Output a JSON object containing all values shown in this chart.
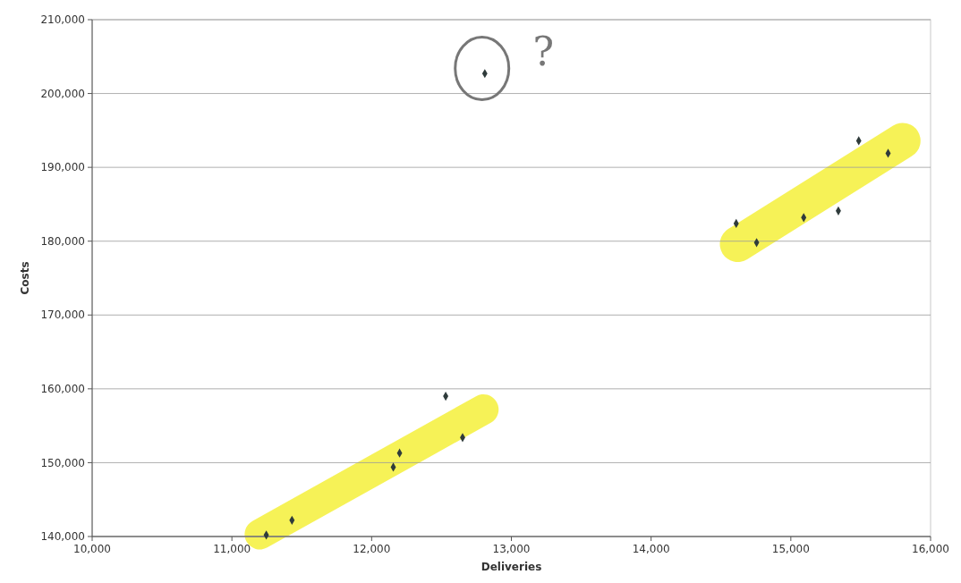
{
  "chart_data": {
    "type": "scatter",
    "xlabel": "Deliveries",
    "ylabel": "Costs",
    "x": [
      11246,
      11430,
      12155,
      12200,
      12530,
      12651,
      12810,
      14609,
      14755,
      15092,
      15340,
      15486,
      15696
    ],
    "values": [
      140200,
      142200,
      149400,
      151300,
      159000,
      153400,
      202700,
      182400,
      179800,
      183200,
      184100,
      193600,
      191900
    ],
    "color": "#2f3b3b",
    "marker": "diamond",
    "grid": "y",
    "xlim": [
      10000,
      16000
    ],
    "xticks": [
      {
        "value": 10000,
        "label": "10,000"
      },
      {
        "value": 11000,
        "label": "11,000"
      },
      {
        "value": 12000,
        "label": "12,000"
      },
      {
        "value": 13000,
        "label": "13,000"
      },
      {
        "value": 14000,
        "label": "14,000"
      },
      {
        "value": 15000,
        "label": "15,000"
      },
      {
        "value": 16000,
        "label": "16,000"
      }
    ],
    "ylim": [
      140000,
      210000
    ],
    "yticks": [
      {
        "value": 140000,
        "label": "140,000"
      },
      {
        "value": 150000,
        "label": "150,000"
      },
      {
        "value": 160000,
        "label": "160,000"
      },
      {
        "value": 170000,
        "label": "170,000"
      },
      {
        "value": 180000,
        "label": "180,000"
      },
      {
        "value": 190000,
        "label": "190,000"
      },
      {
        "value": 200000,
        "label": "200,000"
      },
      {
        "value": 210000,
        "label": "210,000"
      }
    ],
    "annotations": [
      "?"
    ]
  }
}
